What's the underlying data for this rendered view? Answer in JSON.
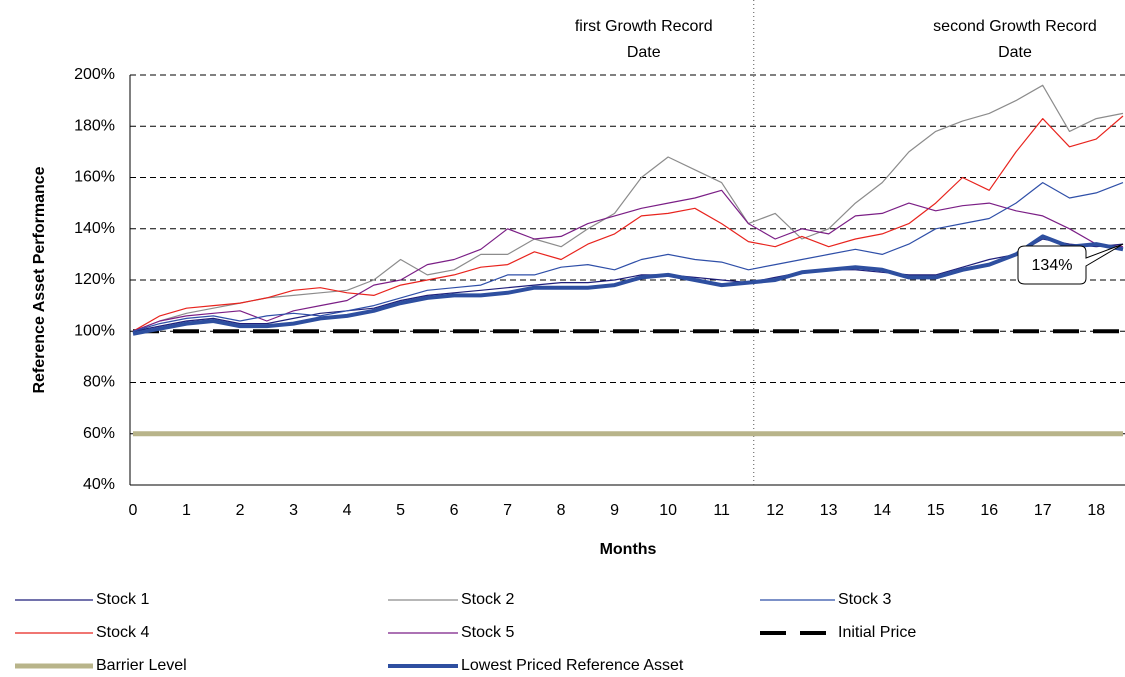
{
  "chart_data": {
    "type": "line",
    "y_label": "Reference Asset Performance",
    "x_label": "Months",
    "x": [
      0,
      0.5,
      1,
      1.5,
      2,
      2.5,
      3,
      3.5,
      4,
      4.5,
      5,
      5.5,
      6,
      6.5,
      7,
      7.5,
      8,
      8.5,
      9,
      9.5,
      10,
      10.5,
      11,
      11.5,
      12,
      12.5,
      13,
      13.5,
      14,
      14.5,
      15,
      15.5,
      16,
      16.5,
      17,
      17.5,
      18,
      18.5
    ],
    "xlim": [
      0,
      18.5
    ],
    "xticks": [
      0,
      1,
      2,
      3,
      4,
      5,
      6,
      7,
      8,
      9,
      10,
      11,
      12,
      13,
      14,
      15,
      16,
      17,
      18
    ],
    "ylim": [
      40,
      200
    ],
    "yticks": [
      {
        "value": 40,
        "label": "40%"
      },
      {
        "value": 60,
        "label": "60%"
      },
      {
        "value": 80,
        "label": "80%"
      },
      {
        "value": 100,
        "label": "100%"
      },
      {
        "value": 120,
        "label": "120%"
      },
      {
        "value": 140,
        "label": "140%"
      },
      {
        "value": 160,
        "label": "160%"
      },
      {
        "value": 180,
        "label": "180%"
      },
      {
        "value": 200,
        "label": "200%"
      }
    ],
    "grid": true,
    "series": [
      {
        "name": "Stock 1",
        "color": "#1f1f7a",
        "line_width": 1.2,
        "values": [
          100,
          102,
          104,
          105,
          103,
          103,
          105,
          107,
          108,
          109,
          112,
          114,
          115,
          116,
          117,
          118,
          119,
          119,
          120,
          122,
          122,
          121,
          120,
          119,
          121,
          123,
          124,
          124,
          123,
          122,
          122,
          125,
          128,
          130,
          136,
          134,
          133,
          134
        ]
      },
      {
        "name": "Stock 2",
        "color": "#8c8c8c",
        "line_width": 1.2,
        "values": [
          100,
          104,
          107,
          109,
          111,
          113,
          114,
          115,
          116,
          120,
          128,
          122,
          124,
          130,
          130,
          136,
          133,
          140,
          146,
          160,
          168,
          163,
          158,
          142,
          146,
          136,
          140,
          150,
          158,
          170,
          178,
          182,
          185,
          190,
          196,
          178,
          183,
          185
        ]
      },
      {
        "name": "Stock 3",
        "color": "#2f4fa8",
        "line_width": 1.2,
        "values": [
          100,
          103,
          105,
          106,
          104,
          106,
          107,
          106,
          108,
          110,
          113,
          116,
          117,
          118,
          122,
          122,
          125,
          126,
          124,
          128,
          130,
          128,
          127,
          124,
          126,
          128,
          130,
          132,
          130,
          134,
          140,
          142,
          144,
          150,
          158,
          152,
          154,
          158
        ]
      },
      {
        "name": "Stock 4",
        "color": "#e8241e",
        "line_width": 1.2,
        "values": [
          100,
          106,
          109,
          110,
          111,
          113,
          116,
          117,
          115,
          114,
          118,
          120,
          122,
          125,
          126,
          131,
          128,
          134,
          138,
          145,
          146,
          148,
          142,
          135,
          133,
          137,
          133,
          136,
          138,
          142,
          150,
          160,
          155,
          170,
          183,
          172,
          175,
          184
        ]
      },
      {
        "name": "Stock 5",
        "color": "#7b1f86",
        "line_width": 1.2,
        "values": [
          100,
          104,
          106,
          107,
          108,
          104,
          108,
          110,
          112,
          118,
          120,
          126,
          128,
          132,
          140,
          136,
          137,
          142,
          145,
          148,
          150,
          152,
          155,
          142,
          136,
          140,
          138,
          145,
          146,
          150,
          147,
          149,
          150,
          147,
          145,
          140,
          134,
          133
        ]
      },
      {
        "name": "Initial Price",
        "color": "#000000",
        "line_width": 4,
        "dash": "26 14",
        "values": [
          100,
          100,
          100,
          100,
          100,
          100,
          100,
          100,
          100,
          100,
          100,
          100,
          100,
          100,
          100,
          100,
          100,
          100,
          100,
          100,
          100,
          100,
          100,
          100,
          100,
          100,
          100,
          100,
          100,
          100,
          100,
          100,
          100,
          100,
          100,
          100,
          100,
          100
        ]
      },
      {
        "name": "Barrier Level",
        "color": "#b8b48a",
        "line_width": 5,
        "values": [
          60,
          60,
          60,
          60,
          60,
          60,
          60,
          60,
          60,
          60,
          60,
          60,
          60,
          60,
          60,
          60,
          60,
          60,
          60,
          60,
          60,
          60,
          60,
          60,
          60,
          60,
          60,
          60,
          60,
          60,
          60,
          60,
          60,
          60,
          60,
          60,
          60,
          60
        ]
      },
      {
        "name": "Lowest Priced Reference Asset",
        "color": "#2e4fa0",
        "line_width": 4,
        "values": [
          99,
          101,
          103,
          104,
          102,
          102,
          103,
          105,
          106,
          108,
          111,
          113,
          114,
          114,
          115,
          117,
          117,
          117,
          118,
          121,
          122,
          120,
          118,
          119,
          120,
          123,
          124,
          125,
          124,
          121,
          121,
          124,
          126,
          130,
          137,
          133,
          134,
          132
        ]
      }
    ],
    "annotations": [
      {
        "text": [
          "first Growth Record",
          "Date"
        ],
        "x": 11.6
      },
      {
        "text": [
          "second Growth Record",
          "Date"
        ]
      }
    ],
    "callout": {
      "text": "134%",
      "value": 134,
      "x": 18.5
    }
  }
}
